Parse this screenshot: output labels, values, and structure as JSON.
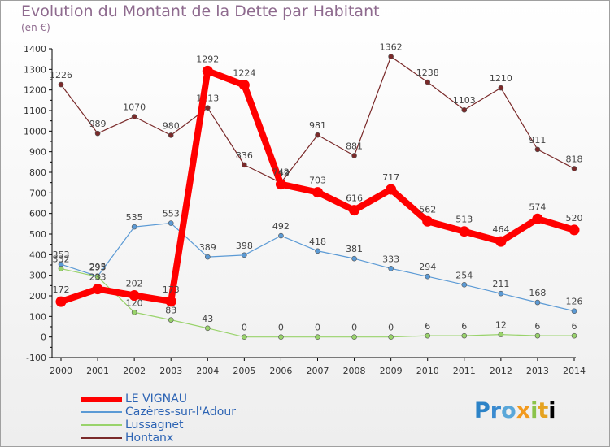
{
  "chart_data": {
    "type": "line",
    "title": "Evolution du Montant de la Dette par Habitant",
    "subtitle": "(en €)",
    "x": [
      "2000",
      "2001",
      "2002",
      "2003",
      "2004",
      "2005",
      "2006",
      "2007",
      "2008",
      "2009",
      "2010",
      "2011",
      "2012",
      "2013",
      "2014"
    ],
    "ylim": [
      -100,
      1400
    ],
    "yticks": [
      -100,
      0,
      100,
      200,
      300,
      400,
      500,
      600,
      700,
      800,
      900,
      1000,
      1100,
      1200,
      1300,
      1400
    ],
    "grid": false,
    "legend_position": "bottom-left",
    "series": [
      {
        "name": "Hontanx",
        "color": "#7a2a2a",
        "values": [
          1226,
          989,
          1070,
          980,
          1113,
          836,
          749,
          981,
          881,
          1362,
          1238,
          1103,
          1210,
          911,
          818
        ]
      },
      {
        "name": "Cazères-sur-l'Adour",
        "color": "#5b9ad5",
        "values": [
          353,
          295,
          535,
          553,
          389,
          398,
          492,
          418,
          381,
          333,
          294,
          254,
          211,
          168,
          126
        ]
      },
      {
        "name": "Lussagnet",
        "color": "#99d36b",
        "values": [
          332,
          293,
          120,
          83,
          43,
          0,
          0,
          0,
          0,
          0,
          6,
          6,
          12,
          6,
          6
        ]
      },
      {
        "name": "LE VIGNAU",
        "color": "#ff0000",
        "values": [
          172,
          233,
          202,
          173,
          1292,
          1224,
          742,
          703,
          616,
          717,
          562,
          513,
          464,
          574,
          520
        ]
      }
    ],
    "legend_order": [
      "LE VIGNAU",
      "Cazères-sur-l'Adour",
      "Lussagnet",
      "Hontanx"
    ]
  },
  "logo": {
    "letters": [
      "P",
      "r",
      "o",
      "x",
      "i",
      "t",
      "i"
    ]
  }
}
